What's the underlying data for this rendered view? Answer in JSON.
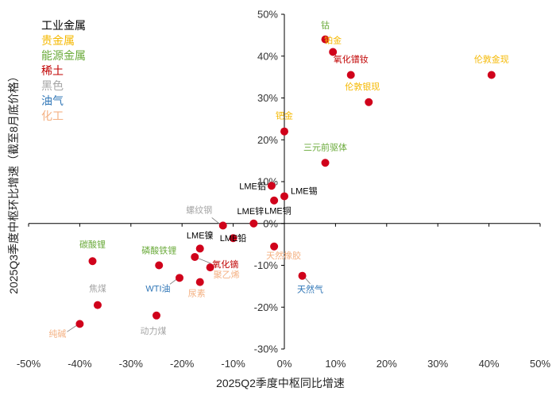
{
  "chart_data": {
    "type": "scatter",
    "xlabel": "2025Q2季度中枢同比增速",
    "ylabel": "2025Q3季度中枢环比增速（截至8月底价格）",
    "xlim": [
      -50,
      50
    ],
    "ylim": [
      -30,
      50
    ],
    "xticks": [
      "-50%",
      "-40%",
      "-30%",
      "-20%",
      "-10%",
      "0%",
      "10%",
      "20%",
      "30%",
      "40%",
      "50%"
    ],
    "yticks": [
      "50%",
      "40%",
      "30%",
      "20%",
      "10%",
      "0%",
      "-10%",
      "-20%",
      "-30%"
    ],
    "marker_color": "#d0021b",
    "legend_position": "top-left",
    "categories": [
      {
        "name": "工业金属",
        "color": "#000000"
      },
      {
        "name": "贵金属",
        "color": "#f5b800"
      },
      {
        "name": "能源金属",
        "color": "#6aaa3a"
      },
      {
        "name": "稀土",
        "color": "#c00000"
      },
      {
        "name": "黑色",
        "color": "#a6a6a6"
      },
      {
        "name": "油气",
        "color": "#2e75b6"
      },
      {
        "name": "化工",
        "color": "#f4b183"
      }
    ],
    "points": [
      {
        "label": "钴",
        "x": 8,
        "y": 44,
        "category": "能源金属"
      },
      {
        "label": "铂金",
        "x": 9.5,
        "y": 41,
        "category": "贵金属"
      },
      {
        "label": "氧化镨钕",
        "x": 13,
        "y": 35.5,
        "category": "稀土"
      },
      {
        "label": "伦敦金现",
        "x": 40.5,
        "y": 35.5,
        "category": "贵金属"
      },
      {
        "label": "伦敦银现",
        "x": 16.5,
        "y": 29,
        "category": "贵金属"
      },
      {
        "label": "钯金",
        "x": 0,
        "y": 22,
        "category": "贵金属"
      },
      {
        "label": "三元前驱体",
        "x": 8,
        "y": 14.5,
        "category": "能源金属"
      },
      {
        "label": "LME铝",
        "x": -2.5,
        "y": 9,
        "category": "工业金属"
      },
      {
        "label": "LME锡",
        "x": 0,
        "y": 6.5,
        "category": "工业金属"
      },
      {
        "label": "LME铜",
        "x": -2,
        "y": 5.5,
        "category": "工业金属"
      },
      {
        "label": "LME锌",
        "x": -6,
        "y": 0,
        "category": "工业金属"
      },
      {
        "label": "螺纹钢",
        "x": -12,
        "y": -0.5,
        "category": "黑色"
      },
      {
        "label": "LME铅",
        "x": -10,
        "y": -3.5,
        "category": "工业金属"
      },
      {
        "label": "LME镍",
        "x": -16.5,
        "y": -6,
        "category": "工业金属"
      },
      {
        "label": "氧化镝",
        "x": -17.5,
        "y": -8,
        "category": "稀土"
      },
      {
        "label": "天然橡胶",
        "x": -2,
        "y": -5.5,
        "category": "化工"
      },
      {
        "label": "聚乙烯",
        "x": -14.5,
        "y": -10.5,
        "category": "化工"
      },
      {
        "label": "磷酸铁锂",
        "x": -24.5,
        "y": -10,
        "category": "能源金属"
      },
      {
        "label": "WTI油",
        "x": -20.5,
        "y": -13,
        "category": "油气"
      },
      {
        "label": "尿素",
        "x": -16.5,
        "y": -14,
        "category": "化工"
      },
      {
        "label": "天然气",
        "x": 3.5,
        "y": -12.5,
        "category": "油气"
      },
      {
        "label": "碳酸锂",
        "x": -37.5,
        "y": -9,
        "category": "能源金属"
      },
      {
        "label": "焦煤",
        "x": -36.5,
        "y": -19.5,
        "category": "黑色"
      },
      {
        "label": "动力煤",
        "x": -25,
        "y": -22,
        "category": "黑色"
      },
      {
        "label": "纯碱",
        "x": -40,
        "y": -24,
        "category": "化工"
      }
    ]
  }
}
